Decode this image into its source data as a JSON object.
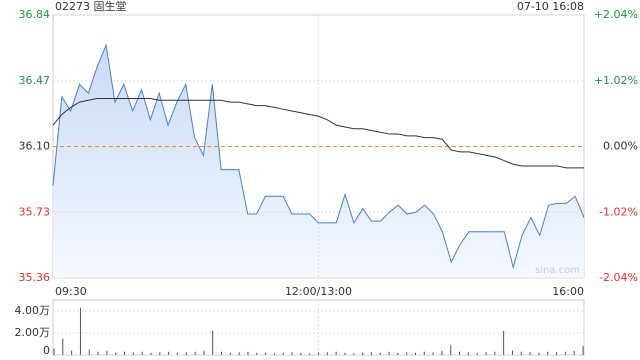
{
  "chart_data": [
    {
      "type": "line",
      "title": "02273 固生堂",
      "subtitle": "07-10 16:08",
      "watermark": "sina.com",
      "xticks": [
        "09:30",
        "12:00/13:00",
        "16:00"
      ],
      "ylim": [
        35.36,
        36.84
      ],
      "yticks": [
        36.84,
        36.47,
        {
          "value": 36.1,
          "label": "36.10"
        },
        35.73,
        35.36
      ],
      "y2lim": [
        -2.04,
        2.04
      ],
      "y2ticks": [
        {
          "value": 2.04,
          "label": "+2.04%"
        },
        {
          "value": 1.02,
          "label": "+1.02%"
        },
        {
          "value": 0,
          "label": "0.00%"
        },
        {
          "value": -1.02,
          "label": "-1.02%"
        },
        {
          "value": -2.04,
          "label": "-2.04%"
        }
      ],
      "up_color": "#1a9b3c",
      "down_color": "#e03030",
      "flat_color": "#333333",
      "reference_color": "#f08a3c",
      "grid": true,
      "series": [
        {
          "color": "#4a7fd4",
          "fill": "#dce8f8",
          "values": [
            35.88,
            36.38,
            36.3,
            36.45,
            36.4,
            36.55,
            36.67,
            36.35,
            36.45,
            36.3,
            36.42,
            36.25,
            36.4,
            36.22,
            36.35,
            36.45,
            36.15,
            36.05,
            36.45,
            35.97,
            35.97,
            35.97,
            35.72,
            35.72,
            35.82,
            35.82,
            35.82,
            35.72,
            35.72,
            35.72,
            35.67,
            35.67,
            35.67,
            35.83,
            35.67,
            35.75,
            35.68,
            35.68,
            35.73,
            35.77,
            35.72,
            35.73,
            35.77,
            35.72,
            35.62,
            35.45,
            35.55,
            35.62,
            35.62,
            35.62,
            35.62,
            35.62,
            35.42,
            35.6,
            35.7,
            35.6,
            35.77,
            35.78,
            35.78,
            35.82,
            35.7
          ]
        },
        {
          "color": "#333333",
          "values": [
            36.22,
            36.28,
            36.32,
            36.35,
            36.36,
            36.37,
            36.37,
            36.37,
            36.37,
            36.37,
            36.37,
            36.37,
            36.36,
            36.36,
            36.36,
            36.36,
            36.36,
            36.36,
            36.36,
            36.36,
            36.35,
            36.35,
            36.34,
            36.33,
            36.33,
            36.32,
            36.31,
            36.3,
            36.29,
            36.28,
            36.27,
            36.25,
            36.22,
            36.21,
            36.2,
            36.2,
            36.19,
            36.18,
            36.17,
            36.17,
            36.16,
            36.16,
            36.15,
            36.15,
            36.14,
            36.08,
            36.07,
            36.07,
            36.06,
            36.05,
            36.04,
            36.02,
            36.0,
            35.99,
            35.99,
            35.99,
            35.99,
            35.99,
            35.98,
            35.98,
            35.98
          ]
        }
      ]
    },
    {
      "type": "bar",
      "color": "#555555",
      "ylim": [
        0,
        50000
      ],
      "yticks": [
        {
          "value": 40000,
          "label": "4.00万"
        },
        {
          "value": 20000,
          "label": "2.00万"
        },
        0
      ],
      "values": [
        6000,
        15000,
        4000,
        43000,
        5000,
        3000,
        4000,
        2000,
        3000,
        2500,
        3000,
        2000,
        2500,
        3000,
        2000,
        2500,
        3000,
        4000,
        22000,
        3000,
        2000,
        2500,
        3000,
        2000,
        2000,
        1500,
        2000,
        2500,
        2000,
        1500,
        2000,
        2500,
        3000,
        2000,
        1500,
        2000,
        2500,
        2000,
        3000,
        2000,
        2500,
        2000,
        3000,
        2500,
        4000,
        9000,
        3000,
        2500,
        2000,
        2500,
        3000,
        22000,
        4000,
        3000,
        2500,
        2000,
        3000,
        2500,
        3000,
        4000,
        8000
      ]
    }
  ]
}
